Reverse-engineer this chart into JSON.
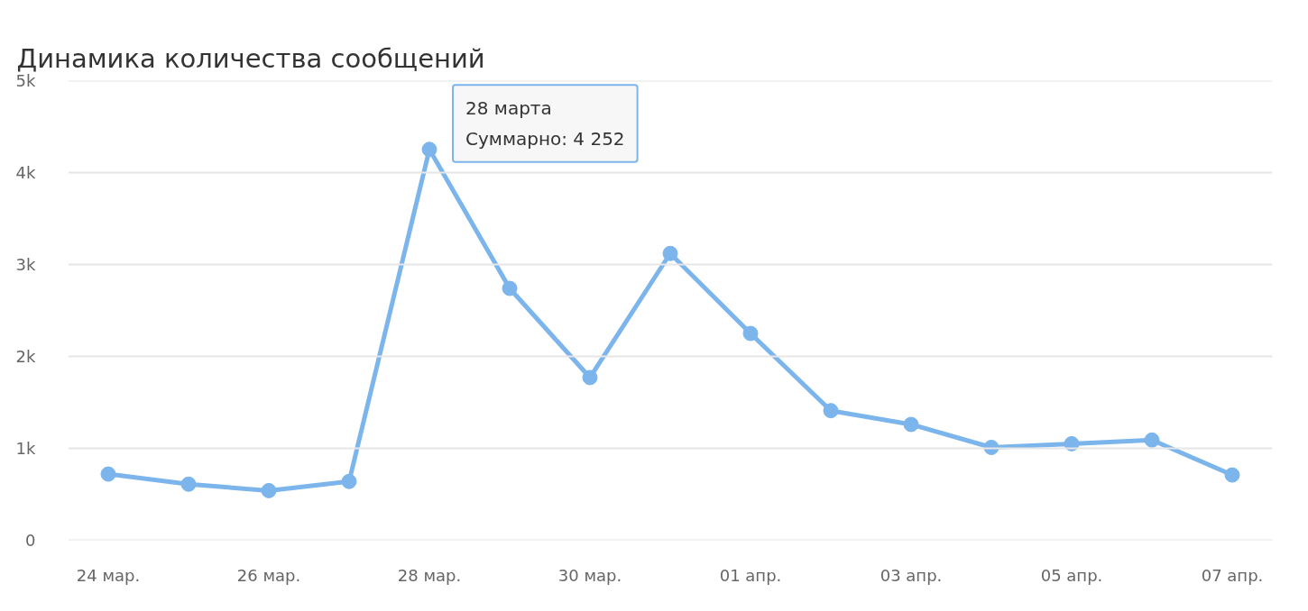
{
  "chart_data": {
    "type": "line",
    "title": "Динамика количества сообщений",
    "categories": [
      "24 мар.",
      null,
      "26 мар.",
      null,
      "28 мар.",
      null,
      "30 мар.",
      null,
      "01 апр.",
      null,
      "03 апр.",
      null,
      "05 апр.",
      null,
      "07 апр."
    ],
    "values": [
      720,
      610,
      540,
      640,
      4252,
      2740,
      1770,
      3120,
      2250,
      1410,
      1260,
      1010,
      1050,
      1090,
      710
    ],
    "color": "#7cb5ec",
    "marker": "circle",
    "line_style": "solid",
    "grid": "y",
    "ylim": [
      0,
      5000
    ],
    "yticks": [
      0,
      {
        "value": 1000,
        "label": "1k"
      },
      {
        "value": 2000,
        "label": "2k"
      },
      {
        "value": 3000,
        "label": "3k"
      },
      {
        "value": 4000,
        "label": "4k"
      },
      {
        "value": 5000,
        "label": "5k"
      }
    ],
    "annotations": [
      {
        "text": "28 марта\nСуммарно: 4 252",
        "x": "28 мар.",
        "y": 4252
      }
    ]
  }
}
